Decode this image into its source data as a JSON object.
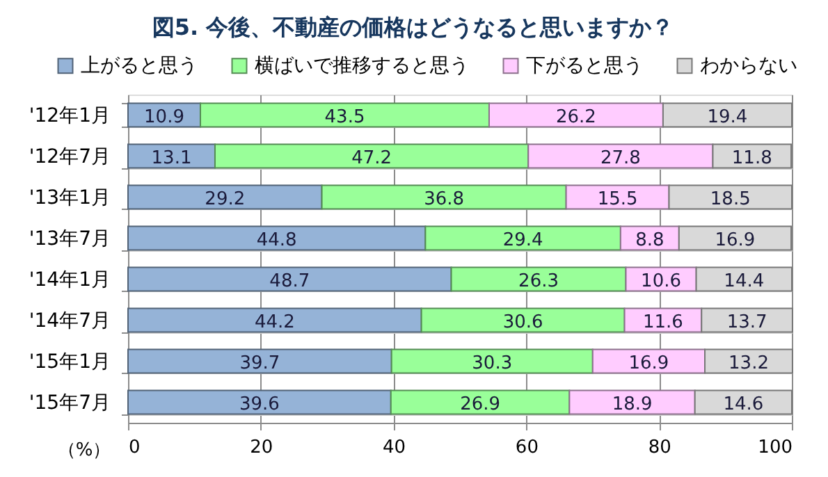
{
  "chart_data": {
    "type": "bar",
    "orientation": "horizontal",
    "stacked": true,
    "title": "図5. 今後、不動産の価格はどうなると思いますか？",
    "xlabel": "（%）",
    "categories": [
      "'12年1月",
      "'12年7月",
      "'13年1月",
      "'13年7月",
      "'14年1月",
      "'14年7月",
      "'15年1月",
      "'15年7月"
    ],
    "series": [
      {
        "name": "上がると思う",
        "color": "#95b3d7",
        "values": [
          10.9,
          13.1,
          29.2,
          44.8,
          48.7,
          44.2,
          39.7,
          39.6
        ]
      },
      {
        "name": "横ばいで推移すると思う",
        "color": "#99ff99",
        "values": [
          43.5,
          47.2,
          36.8,
          29.4,
          26.3,
          30.6,
          30.3,
          26.9
        ]
      },
      {
        "name": "下がると思う",
        "color": "#ffccff",
        "values": [
          26.2,
          27.8,
          15.5,
          8.8,
          10.6,
          11.6,
          16.9,
          18.9
        ]
      },
      {
        "name": "わからない",
        "color": "#d9d9d9",
        "values": [
          19.4,
          11.8,
          18.5,
          16.9,
          14.4,
          13.7,
          13.2,
          14.6
        ]
      }
    ],
    "xlim": [
      0,
      100
    ],
    "xticks": [
      0,
      20,
      40,
      60,
      80,
      100
    ],
    "grid": true,
    "legend": "top",
    "data_labels": true
  }
}
